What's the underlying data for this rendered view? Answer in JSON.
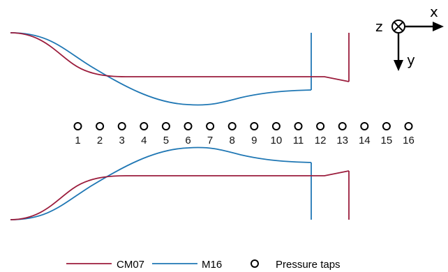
{
  "axes": {
    "x_label": "x",
    "y_label": "y",
    "z_label": "z"
  },
  "taps": {
    "labels": [
      "1",
      "2",
      "3",
      "4",
      "5",
      "6",
      "7",
      "8",
      "9",
      "10",
      "11",
      "12",
      "13",
      "14",
      "15",
      "16"
    ]
  },
  "legend": {
    "cm07_label": "CM07",
    "m16_label": "M16",
    "taps_label": "Pressure taps"
  },
  "colors": {
    "cm07": "#9b1c3c",
    "m16": "#1f77b4",
    "taps": "#000000"
  }
}
